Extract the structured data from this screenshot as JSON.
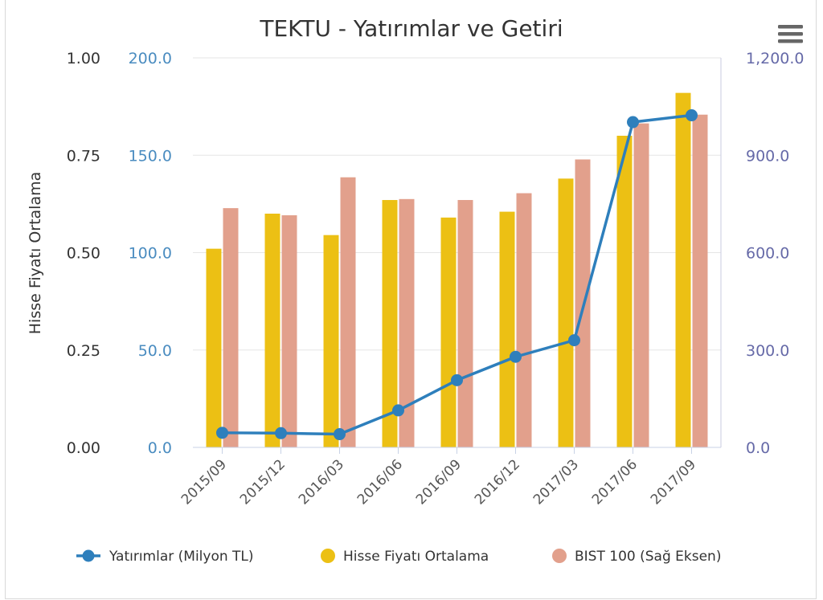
{
  "chart_data": {
    "type": "bar",
    "title": "TEKTU - Yatırımlar ve Getiri",
    "categories": [
      "2015/09",
      "2015/12",
      "2016/03",
      "2016/06",
      "2016/09",
      "2016/12",
      "2017/03",
      "2017/06",
      "2017/09"
    ],
    "axes": {
      "left_primary": {
        "label": "Hisse Fiyatı Ortalama",
        "range": [
          0,
          1
        ],
        "ticks": [
          "0.00",
          "0.25",
          "0.50",
          "0.75",
          "1.00"
        ],
        "color": "#333333"
      },
      "left_secondary": {
        "label": "",
        "range": [
          0,
          200
        ],
        "ticks": [
          "0.0",
          "50.0",
          "100.0",
          "150.0",
          "200.0"
        ],
        "color": "#4a8cc0"
      },
      "right": {
        "label": "",
        "range": [
          0,
          1200
        ],
        "ticks": [
          "0.0",
          "300.0",
          "600.0",
          "900.0",
          "1,200.0"
        ],
        "color": "#666aa8"
      }
    },
    "series": [
      {
        "name": "Yatırımlar (Milyon TL)",
        "type": "line",
        "axis": "left_secondary",
        "color": "#2e7fbc",
        "values": [
          7.5,
          7.3,
          6.8,
          19.0,
          34.5,
          46.5,
          55.0,
          167.0,
          170.5
        ]
      },
      {
        "name": "Hisse Fiyatı Ortalama",
        "type": "bar",
        "axis": "left_primary",
        "color": "#ecc014",
        "values": [
          0.51,
          0.6,
          0.545,
          0.635,
          0.59,
          0.605,
          0.69,
          0.8,
          0.91
        ]
      },
      {
        "name": "BIST 100 (Sağ Eksen)",
        "type": "bar",
        "axis": "right",
        "color": "#e2a08c",
        "values": [
          737,
          715,
          832,
          765,
          762,
          783,
          887,
          998,
          1025
        ]
      }
    ],
    "grid": true,
    "legend": "bottom"
  },
  "menu": {
    "icon": "hamburger-menu-icon"
  }
}
